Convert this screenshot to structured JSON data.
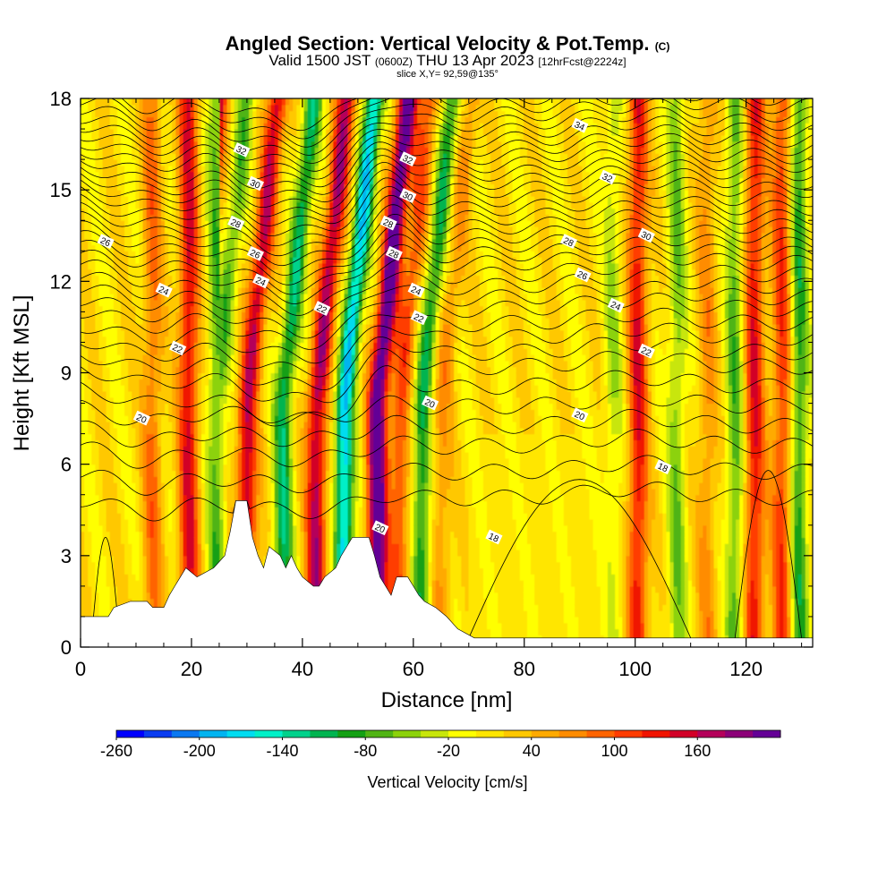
{
  "header": {
    "title": "Angled Section: Vertical Velocity & Pot.Temp.",
    "title_unit": "(C)",
    "valid_prefix": "Valid 1500 JST",
    "valid_z": "(0600Z)",
    "valid_date": "THU 13 Apr 2023",
    "forecast": "[12hrFcst@2224z]",
    "slice": "slice X,Y= 92,59@135°"
  },
  "chart_data": {
    "type": "heatmap",
    "xlabel": "Distance [nm]",
    "ylabel": "Height [Kft MSL]",
    "xlim": [
      0,
      132
    ],
    "ylim": [
      0,
      18
    ],
    "x_ticks": [
      "0",
      "20",
      "40",
      "60",
      "80",
      "100",
      "120"
    ],
    "y_ticks": [
      "0",
      "3",
      "6",
      "9",
      "12",
      "15",
      "18"
    ],
    "colorbar": {
      "label": "Vertical Velocity [cm/s]",
      "tick_labels": [
        "-260",
        "-200",
        "-140",
        "-80",
        "-20",
        "40",
        "100",
        "160"
      ],
      "colors": [
        "#0000ff",
        "#0a3cf0",
        "#0a78f0",
        "#00b4f0",
        "#00dcf0",
        "#00f0c8",
        "#00d28c",
        "#00b450",
        "#14a014",
        "#50b414",
        "#8cd20a",
        "#c8e60a",
        "#ffff00",
        "#ffe600",
        "#ffc800",
        "#ffaa00",
        "#ff8c00",
        "#ff6400",
        "#ff3c00",
        "#f01400",
        "#d20028",
        "#b4005a",
        "#8c0078",
        "#640096"
      ]
    },
    "updraft_columns": [
      {
        "x": 13,
        "amp": 0.55
      },
      {
        "x": 19.5,
        "amp": 1.0
      },
      {
        "x": 30,
        "amp": 1.15
      },
      {
        "x": 42.5,
        "amp": 1.25
      },
      {
        "x": 53.5,
        "amp": 1.7
      },
      {
        "x": 57.5,
        "amp": 0.7
      },
      {
        "x": 65,
        "amp": 0.4
      },
      {
        "x": 100.5,
        "amp": 0.95
      },
      {
        "x": 113,
        "amp": 0.4
      },
      {
        "x": 121.5,
        "amp": 0.95
      },
      {
        "x": 126.5,
        "amp": 0.8
      }
    ],
    "downdraft_columns": [
      {
        "x": 24.5,
        "amp": 0.6
      },
      {
        "x": 36.5,
        "amp": 0.95
      },
      {
        "x": 47.5,
        "amp": 1.45
      },
      {
        "x": 61.5,
        "amp": 0.85
      },
      {
        "x": 96,
        "amp": 0.35
      },
      {
        "x": 107.5,
        "amp": 0.5
      },
      {
        "x": 118,
        "amp": 0.6
      },
      {
        "x": 129.5,
        "amp": 0.75
      }
    ],
    "isentrope_values": [
      18,
      20,
      22,
      24,
      26,
      28,
      30,
      32,
      34
    ],
    "contour_labels": [
      {
        "text": "34",
        "x": 90,
        "y": 17.1
      },
      {
        "text": "32",
        "x": 29,
        "y": 16.3
      },
      {
        "text": "32",
        "x": 59,
        "y": 16.0
      },
      {
        "text": "32",
        "x": 95,
        "y": 15.4
      },
      {
        "text": "30",
        "x": 31.5,
        "y": 15.2
      },
      {
        "text": "30",
        "x": 59,
        "y": 14.8
      },
      {
        "text": "30",
        "x": 102,
        "y": 13.5
      },
      {
        "text": "28",
        "x": 28,
        "y": 13.9
      },
      {
        "text": "28",
        "x": 55.5,
        "y": 13.9
      },
      {
        "text": "28",
        "x": 56.5,
        "y": 12.9
      },
      {
        "text": "28",
        "x": 88,
        "y": 13.3
      },
      {
        "text": "26",
        "x": 4.5,
        "y": 13.3
      },
      {
        "text": "26",
        "x": 31.5,
        "y": 12.9
      },
      {
        "text": "26",
        "x": 90.5,
        "y": 12.2
      },
      {
        "text": "24",
        "x": 15,
        "y": 11.7
      },
      {
        "text": "24",
        "x": 32.5,
        "y": 12.0
      },
      {
        "text": "24",
        "x": 60.5,
        "y": 11.7
      },
      {
        "text": "24",
        "x": 96.5,
        "y": 11.2
      },
      {
        "text": "22",
        "x": 17.5,
        "y": 9.8
      },
      {
        "text": "22",
        "x": 43.5,
        "y": 11.1
      },
      {
        "text": "22",
        "x": 61,
        "y": 10.8
      },
      {
        "text": "22",
        "x": 102,
        "y": 9.7
      },
      {
        "text": "20",
        "x": 11,
        "y": 7.5
      },
      {
        "text": "20",
        "x": 63,
        "y": 8.0
      },
      {
        "text": "20",
        "x": 90,
        "y": 7.6
      },
      {
        "text": "20",
        "x": 54,
        "y": 3.9
      },
      {
        "text": "18",
        "x": 74.5,
        "y": 3.6
      },
      {
        "text": "18",
        "x": 105,
        "y": 5.9
      }
    ],
    "terrain": [
      [
        0,
        1
      ],
      [
        5,
        1
      ],
      [
        6,
        1.3
      ],
      [
        9,
        1.5
      ],
      [
        12,
        1.5
      ],
      [
        13,
        1.3
      ],
      [
        15,
        1.3
      ],
      [
        16,
        1.7
      ],
      [
        17,
        2
      ],
      [
        18,
        2.3
      ],
      [
        19,
        2.6
      ],
      [
        21,
        2.3
      ],
      [
        24,
        2.6
      ],
      [
        26,
        3
      ],
      [
        27,
        3.8
      ],
      [
        28,
        4.8
      ],
      [
        29,
        4.8
      ],
      [
        30,
        4.8
      ],
      [
        31,
        3.6
      ],
      [
        32,
        3
      ],
      [
        33,
        2.6
      ],
      [
        34,
        3.3
      ],
      [
        36,
        3
      ],
      [
        37,
        2.6
      ],
      [
        38,
        3
      ],
      [
        39,
        2.6
      ],
      [
        40,
        2.3
      ],
      [
        42,
        2
      ],
      [
        43,
        2
      ],
      [
        44,
        2.3
      ],
      [
        46,
        2.6
      ],
      [
        47,
        3
      ],
      [
        48,
        3.3
      ],
      [
        49,
        3.6
      ],
      [
        52,
        3.6
      ],
      [
        53,
        3
      ],
      [
        54,
        2.3
      ],
      [
        55,
        2
      ],
      [
        56,
        1.7
      ],
      [
        57,
        2.3
      ],
      [
        59,
        2.3
      ],
      [
        60,
        2
      ],
      [
        61,
        1.7
      ],
      [
        62,
        1.5
      ],
      [
        64,
        1.3
      ],
      [
        66,
        1
      ],
      [
        68,
        0.6
      ],
      [
        71,
        0.3
      ],
      [
        132,
        0.3
      ]
    ]
  }
}
